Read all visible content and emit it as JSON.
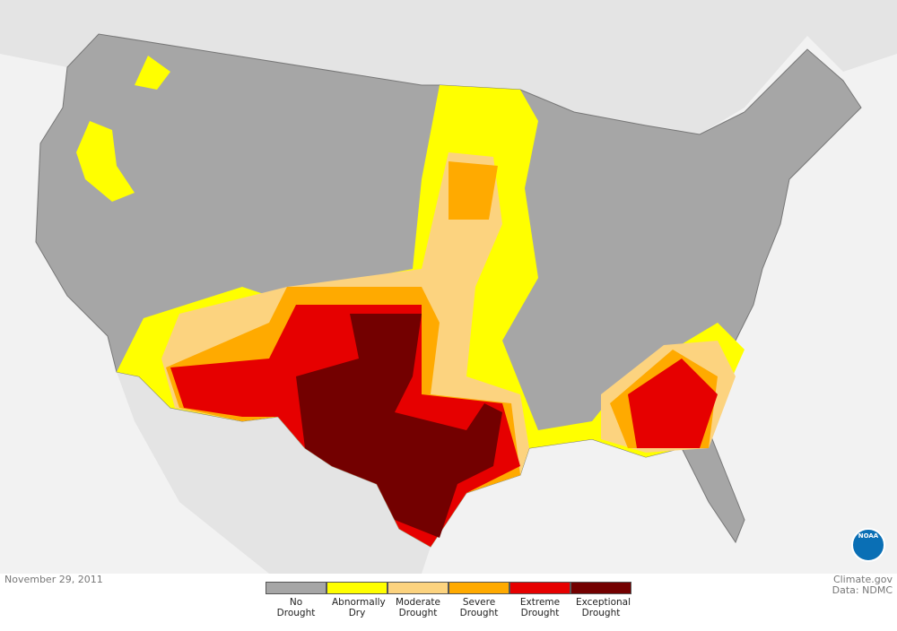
{
  "date": "November 29, 2011",
  "source": "Climate.gov",
  "credit": "Data: NDMC",
  "logo": "NOAA",
  "legend": [
    {
      "label": "No Drought",
      "color": "#a6a6a6"
    },
    {
      "label": "Abnormally Dry",
      "color": "#ffff00"
    },
    {
      "label": "Moderate Drought",
      "color": "#fcd37f"
    },
    {
      "label": "Severe Drought",
      "color": "#ffaa00"
    },
    {
      "label": "Extreme Drought",
      "color": "#e60000"
    },
    {
      "label": "Exceptional Drought",
      "color": "#730000"
    }
  ]
}
